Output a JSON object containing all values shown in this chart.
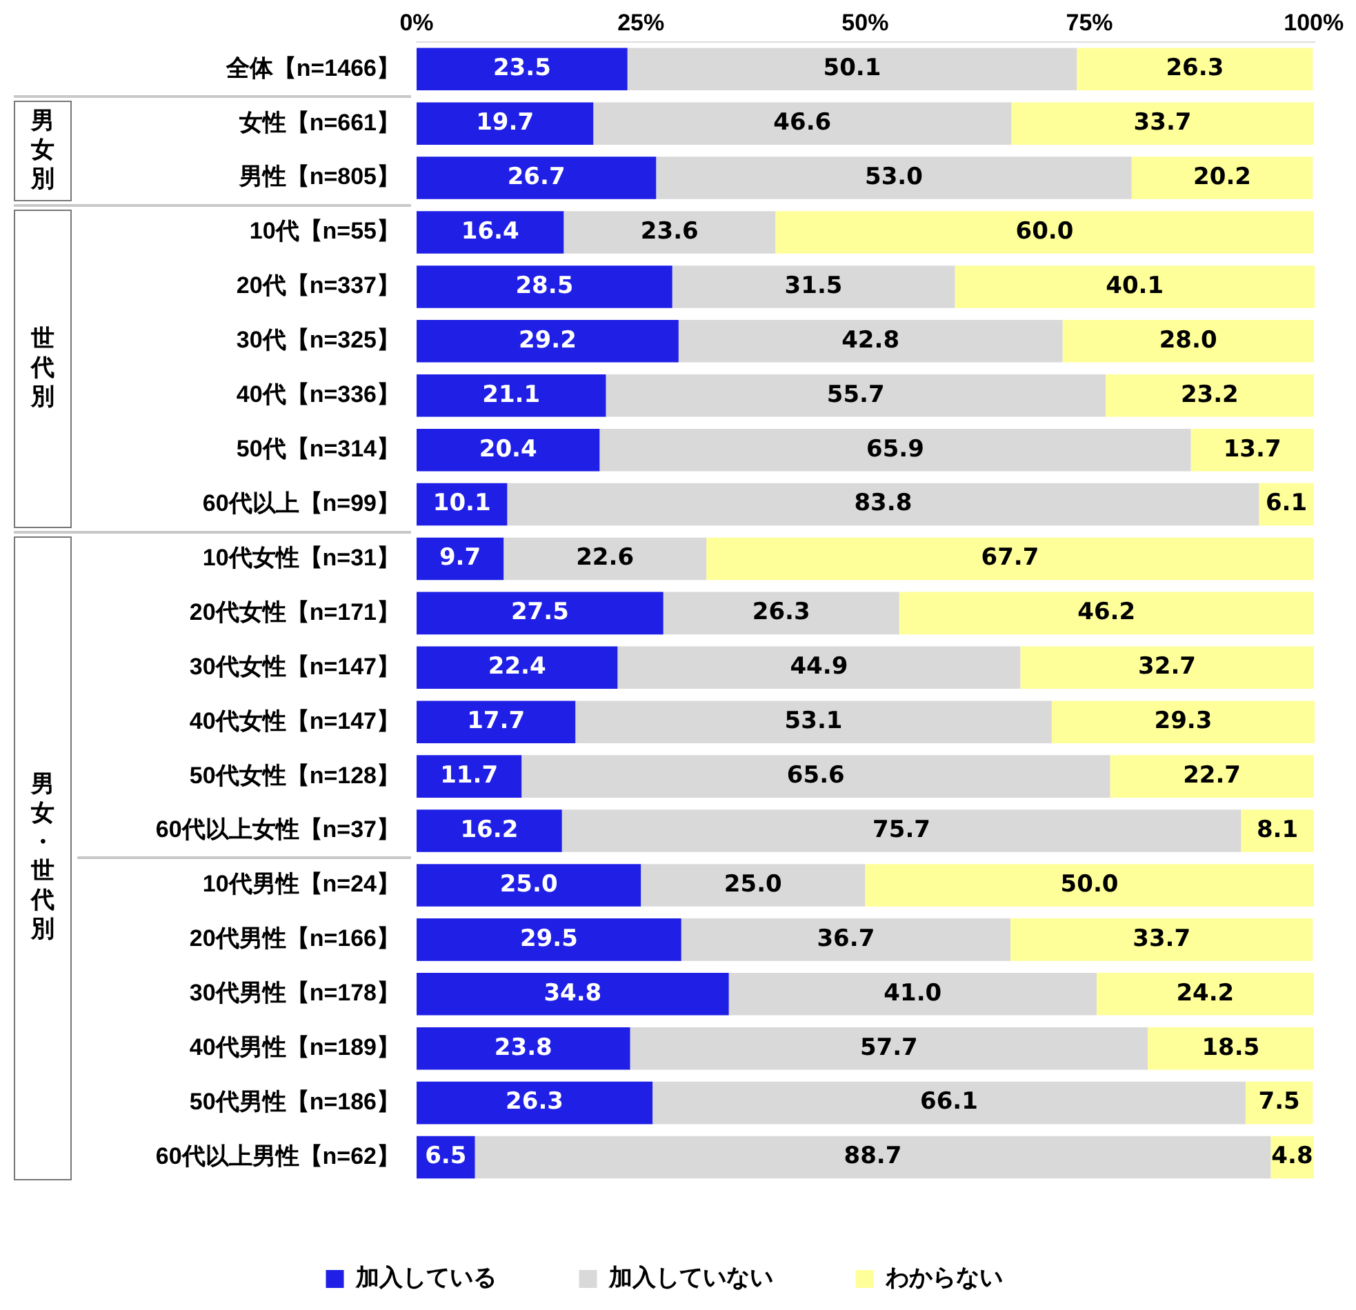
{
  "chart_data": {
    "type": "bar",
    "orientation": "horizontal",
    "stacked": true,
    "categories": [
      "全体【n=1466】",
      "女性【n=661】",
      "男性【n=805】",
      "10代【n=55】",
      "20代【n=337】",
      "30代【n=325】",
      "40代【n=336】",
      "50代【n=314】",
      "60代以上【n=99】",
      "10代女性【n=31】",
      "20代女性【n=171】",
      "30代女性【n=147】",
      "40代女性【n=147】",
      "50代女性【n=128】",
      "60代以上女性【n=37】",
      "10代男性【n=24】",
      "20代男性【n=166】",
      "30代男性【n=178】",
      "40代男性【n=189】",
      "50代男性【n=186】",
      "60代以上男性【n=62】"
    ],
    "series": [
      {
        "name": "加入している",
        "color": "#1f1fe6",
        "values": [
          23.5,
          19.7,
          26.7,
          16.4,
          28.5,
          29.2,
          21.1,
          20.4,
          10.1,
          9.7,
          27.5,
          22.4,
          17.7,
          11.7,
          16.2,
          25.0,
          29.5,
          34.8,
          23.8,
          26.3,
          6.5
        ],
        "value_labels": [
          "23.5",
          "19.7",
          "26.7",
          "16.4",
          "28.5",
          "29.2",
          "21.1",
          "20.4",
          "10.1",
          "9.7",
          "27.5",
          "22.4",
          "17.7",
          "11.7",
          "16.2",
          "25.0",
          "29.5",
          "34.8",
          "23.8",
          "26.3",
          "6.5"
        ]
      },
      {
        "name": "加入していない",
        "color": "#d9d9d9",
        "values": [
          50.1,
          46.6,
          53.0,
          23.6,
          31.5,
          42.8,
          55.7,
          65.9,
          83.8,
          22.6,
          26.3,
          44.9,
          53.1,
          65.6,
          75.7,
          25.0,
          36.7,
          41.0,
          57.7,
          66.1,
          88.7
        ],
        "value_labels": [
          "50.1",
          "46.6",
          "53.0",
          "23.6",
          "31.5",
          "42.8",
          "55.7",
          "65.9",
          "83.8",
          "22.6",
          "26.3",
          "44.9",
          "53.1",
          "65.6",
          "75.7",
          "25.0",
          "36.7",
          "41.0",
          "57.7",
          "66.1",
          "88.7"
        ]
      },
      {
        "name": "わからない",
        "color": "#ffff99",
        "values": [
          26.3,
          33.7,
          20.2,
          60.0,
          40.1,
          28.0,
          23.2,
          13.7,
          6.1,
          67.7,
          46.2,
          32.7,
          29.3,
          22.7,
          8.1,
          50.0,
          33.7,
          24.2,
          18.5,
          7.5,
          4.8
        ],
        "value_labels": [
          "26.3",
          "33.7",
          "20.2",
          "60.0",
          "40.1",
          "28.0",
          "23.2",
          "13.7",
          "6.1",
          "67.7",
          "46.2",
          "32.7",
          "29.3",
          "22.7",
          "8.1",
          "50.0",
          "33.7",
          "24.2",
          "18.5",
          "7.5",
          "4.8"
        ]
      }
    ],
    "xlim": [
      0,
      100.1
    ],
    "xticks": [
      {
        "value": 0,
        "label": "0%"
      },
      {
        "value": 25,
        "label": "25%"
      },
      {
        "value": 50,
        "label": "50%"
      },
      {
        "value": 75,
        "label": "75%"
      },
      {
        "value": 100,
        "label": "100%"
      }
    ],
    "grid": false,
    "legend": "bottom",
    "annotations": [
      "男女別",
      "世代別",
      "男女・世代別"
    ]
  }
}
